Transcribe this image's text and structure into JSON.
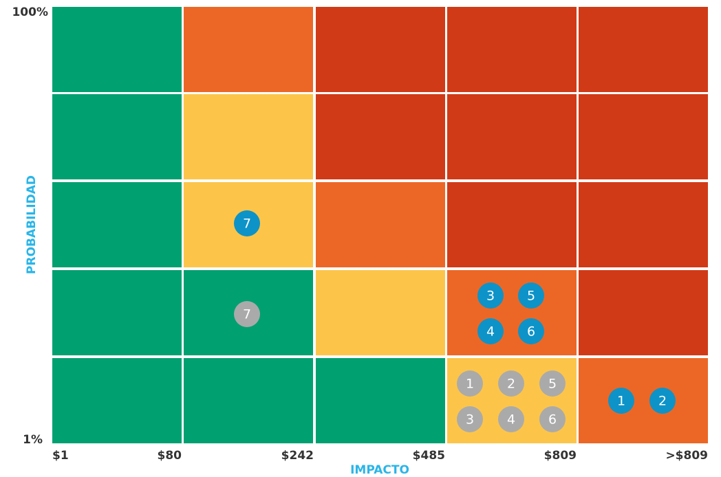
{
  "x_axis": {
    "title": "IMPACTO",
    "labels": [
      "$1",
      "$80",
      "$242",
      "$485",
      "$809",
      ">$809"
    ]
  },
  "y_axis": {
    "title": "PROBABILIDAD",
    "top": "100%",
    "bottom": "1%"
  },
  "colors": {
    "green": "#00a070",
    "yellow": "#fcc54a",
    "orange": "#ec6726",
    "red": "#d13a17",
    "blue": "#0d93c8",
    "gray": "#aaaaaa"
  },
  "grid": [
    [
      "green",
      "orange",
      "red",
      "red",
      "red"
    ],
    [
      "green",
      "yellow",
      "red",
      "red",
      "red"
    ],
    [
      "green",
      "yellow",
      "orange",
      "red",
      "red"
    ],
    [
      "green",
      "green",
      "yellow",
      "orange",
      "red"
    ],
    [
      "green",
      "green",
      "green",
      "yellow",
      "orange"
    ]
  ],
  "markers": [
    {
      "label": "7",
      "color": "blue"
    },
    {
      "label": "7",
      "color": "gray"
    },
    {
      "label": "3",
      "color": "blue"
    },
    {
      "label": "5",
      "color": "blue"
    },
    {
      "label": "4",
      "color": "blue"
    },
    {
      "label": "6",
      "color": "blue"
    },
    {
      "label": "1",
      "color": "gray"
    },
    {
      "label": "2",
      "color": "gray"
    },
    {
      "label": "5",
      "color": "gray"
    },
    {
      "label": "3",
      "color": "gray"
    },
    {
      "label": "4",
      "color": "gray"
    },
    {
      "label": "6",
      "color": "gray"
    },
    {
      "label": "1",
      "color": "blue"
    },
    {
      "label": "2",
      "color": "blue"
    }
  ]
}
